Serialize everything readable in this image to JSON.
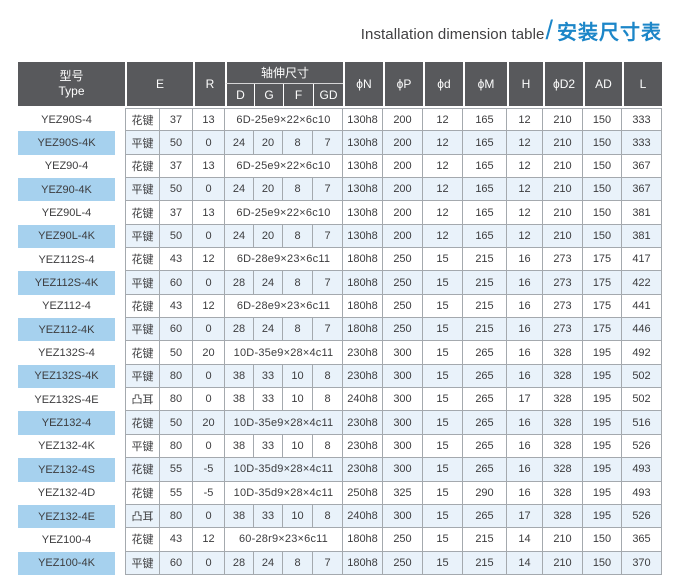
{
  "title": {
    "en": "Installation dimension table",
    "slash": "/",
    "zh": "安装尺寸表"
  },
  "colors": {
    "accent_blue": "#1c86c8",
    "header_bg": "#58595c",
    "highlight_row": "#e9f2fa",
    "highlight_type_cell": "#a6d1ee",
    "cell_border": "#a4a9ae"
  },
  "table": {
    "header": {
      "model_zh": "型号",
      "model_en": "Type",
      "e": "E",
      "r": "R",
      "shaft_group": "轴伸尺寸",
      "d": "D",
      "g": "G",
      "f": "F",
      "gd": "GD",
      "phi_n": "ϕN",
      "phi_p": "ϕP",
      "phi_d": "ϕd",
      "phi_m": "ϕM",
      "h": "H",
      "phi_d2": "ϕD2",
      "ad": "AD",
      "l": "L"
    },
    "rows": [
      {
        "model": "YEZ90S-4",
        "key": "花键",
        "e": "37",
        "r": "13",
        "shaft": "6D-25e9×22×6c10",
        "phi_n": "130h8",
        "phi_p": "200",
        "phi_d": "12",
        "phi_m": "165",
        "h": "12",
        "phi_d2": "210",
        "ad": "150",
        "l": "333",
        "highlight": false
      },
      {
        "model": "YEZ90S-4K",
        "key": "平键",
        "e": "50",
        "r": "0",
        "d": "24",
        "g": "20",
        "f": "8",
        "gd": "7",
        "phi_n": "130h8",
        "phi_p": "200",
        "phi_d": "12",
        "phi_m": "165",
        "h": "12",
        "phi_d2": "210",
        "ad": "150",
        "l": "333",
        "highlight": true
      },
      {
        "model": "YEZ90-4",
        "key": "花键",
        "e": "37",
        "r": "13",
        "shaft": "6D-25e9×22×6c10",
        "phi_n": "130h8",
        "phi_p": "200",
        "phi_d": "12",
        "phi_m": "165",
        "h": "12",
        "phi_d2": "210",
        "ad": "150",
        "l": "367",
        "highlight": false
      },
      {
        "model": "YEZ90-4K",
        "key": "平键",
        "e": "50",
        "r": "0",
        "d": "24",
        "g": "20",
        "f": "8",
        "gd": "7",
        "phi_n": "130h8",
        "phi_p": "200",
        "phi_d": "12",
        "phi_m": "165",
        "h": "12",
        "phi_d2": "210",
        "ad": "150",
        "l": "367",
        "highlight": true
      },
      {
        "model": "YEZ90L-4",
        "key": "花键",
        "e": "37",
        "r": "13",
        "shaft": "6D-25e9×22×6c10",
        "phi_n": "130h8",
        "phi_p": "200",
        "phi_d": "12",
        "phi_m": "165",
        "h": "12",
        "phi_d2": "210",
        "ad": "150",
        "l": "381",
        "highlight": false
      },
      {
        "model": "YEZ90L-4K",
        "key": "平键",
        "e": "50",
        "r": "0",
        "d": "24",
        "g": "20",
        "f": "8",
        "gd": "7",
        "phi_n": "130h8",
        "phi_p": "200",
        "phi_d": "12",
        "phi_m": "165",
        "h": "12",
        "phi_d2": "210",
        "ad": "150",
        "l": "381",
        "highlight": true
      },
      {
        "model": "YEZ112S-4",
        "key": "花键",
        "e": "43",
        "r": "12",
        "shaft": "6D-28e9×23×6c11",
        "phi_n": "180h8",
        "phi_p": "250",
        "phi_d": "15",
        "phi_m": "215",
        "h": "16",
        "phi_d2": "273",
        "ad": "175",
        "l": "417",
        "highlight": false
      },
      {
        "model": "YEZ112S-4K",
        "key": "平键",
        "e": "60",
        "r": "0",
        "d": "28",
        "g": "24",
        "f": "8",
        "gd": "7",
        "phi_n": "180h8",
        "phi_p": "250",
        "phi_d": "15",
        "phi_m": "215",
        "h": "16",
        "phi_d2": "273",
        "ad": "175",
        "l": "422",
        "highlight": true
      },
      {
        "model": "YEZ112-4",
        "key": "花键",
        "e": "43",
        "r": "12",
        "shaft": "6D-28e9×23×6c11",
        "phi_n": "180h8",
        "phi_p": "250",
        "phi_d": "15",
        "phi_m": "215",
        "h": "16",
        "phi_d2": "273",
        "ad": "175",
        "l": "441",
        "highlight": false
      },
      {
        "model": "YEZ112-4K",
        "key": "平键",
        "e": "60",
        "r": "0",
        "d": "28",
        "g": "24",
        "f": "8",
        "gd": "7",
        "phi_n": "180h8",
        "phi_p": "250",
        "phi_d": "15",
        "phi_m": "215",
        "h": "16",
        "phi_d2": "273",
        "ad": "175",
        "l": "446",
        "highlight": true
      },
      {
        "model": "YEZ132S-4",
        "key": "花键",
        "e": "50",
        "r": "20",
        "shaft": "10D-35e9×28×4c11",
        "phi_n": "230h8",
        "phi_p": "300",
        "phi_d": "15",
        "phi_m": "265",
        "h": "16",
        "phi_d2": "328",
        "ad": "195",
        "l": "492",
        "highlight": false
      },
      {
        "model": "YEZ132S-4K",
        "key": "平键",
        "e": "80",
        "r": "0",
        "d": "38",
        "g": "33",
        "f": "10",
        "gd": "8",
        "phi_n": "230h8",
        "phi_p": "300",
        "phi_d": "15",
        "phi_m": "265",
        "h": "16",
        "phi_d2": "328",
        "ad": "195",
        "l": "502",
        "highlight": true
      },
      {
        "model": "YEZ132S-4E",
        "key": "凸耳",
        "e": "80",
        "r": "0",
        "d": "38",
        "g": "33",
        "f": "10",
        "gd": "8",
        "phi_n": "240h8",
        "phi_p": "300",
        "phi_d": "15",
        "phi_m": "265",
        "h": "17",
        "phi_d2": "328",
        "ad": "195",
        "l": "502",
        "highlight": false
      },
      {
        "model": "YEZ132-4",
        "key": "花键",
        "e": "50",
        "r": "20",
        "shaft": "10D-35e9×28×4c11",
        "phi_n": "230h8",
        "phi_p": "300",
        "phi_d": "15",
        "phi_m": "265",
        "h": "16",
        "phi_d2": "328",
        "ad": "195",
        "l": "516",
        "highlight": true
      },
      {
        "model": "YEZ132-4K",
        "key": "平键",
        "e": "80",
        "r": "0",
        "d": "38",
        "g": "33",
        "f": "10",
        "gd": "8",
        "phi_n": "230h8",
        "phi_p": "300",
        "phi_d": "15",
        "phi_m": "265",
        "h": "16",
        "phi_d2": "328",
        "ad": "195",
        "l": "526",
        "highlight": false
      },
      {
        "model": "YEZ132-4S",
        "key": "花键",
        "e": "55",
        "r": "-5",
        "shaft": "10D-35d9×28×4c11",
        "phi_n": "230h8",
        "phi_p": "300",
        "phi_d": "15",
        "phi_m": "265",
        "h": "16",
        "phi_d2": "328",
        "ad": "195",
        "l": "493",
        "highlight": true
      },
      {
        "model": "YEZ132-4D",
        "key": "花键",
        "e": "55",
        "r": "-5",
        "shaft": "10D-35d9×28×4c11",
        "phi_n": "250h8",
        "phi_p": "325",
        "phi_d": "15",
        "phi_m": "290",
        "h": "16",
        "phi_d2": "328",
        "ad": "195",
        "l": "493",
        "highlight": false
      },
      {
        "model": "YEZ132-4E",
        "key": "凸耳",
        "e": "80",
        "r": "0",
        "d": "38",
        "g": "33",
        "f": "10",
        "gd": "8",
        "phi_n": "240h8",
        "phi_p": "300",
        "phi_d": "15",
        "phi_m": "265",
        "h": "17",
        "phi_d2": "328",
        "ad": "195",
        "l": "526",
        "highlight": true
      },
      {
        "model": "YEZ100-4",
        "key": "花键",
        "e": "43",
        "r": "12",
        "shaft": "60-28r9×23×6c11",
        "phi_n": "180h8",
        "phi_p": "250",
        "phi_d": "15",
        "phi_m": "215",
        "h": "14",
        "phi_d2": "210",
        "ad": "150",
        "l": "365",
        "highlight": false
      },
      {
        "model": "YEZ100-4K",
        "key": "平键",
        "e": "60",
        "r": "0",
        "d": "28",
        "g": "24",
        "f": "8",
        "gd": "7",
        "phi_n": "180h8",
        "phi_p": "250",
        "phi_d": "15",
        "phi_m": "215",
        "h": "14",
        "phi_d2": "210",
        "ad": "150",
        "l": "370",
        "highlight": true
      }
    ]
  }
}
